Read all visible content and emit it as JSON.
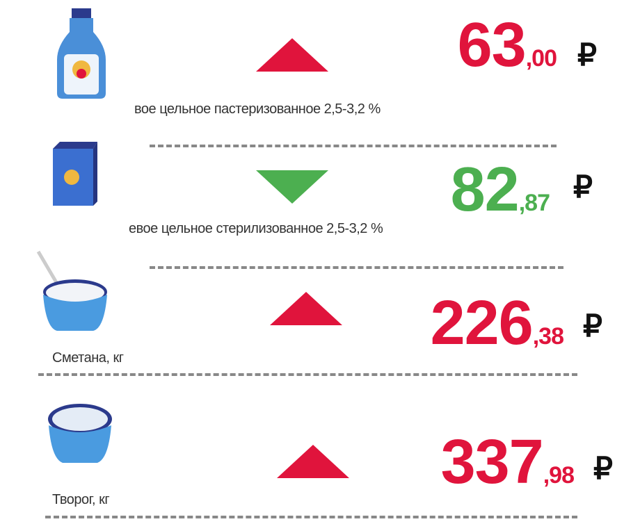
{
  "items": [
    {
      "label": "вое цельное пастеризованное 2,5-3,2 %",
      "price": "63",
      "decimals": ",00",
      "currency": "₽",
      "trend": "up"
    },
    {
      "label": "евое цельное стерилизованное 2,5-3,2 %",
      "price": "82",
      "decimals": ",87",
      "currency": "₽",
      "trend": "down"
    },
    {
      "label": "Сметана, кг",
      "price": "226",
      "decimals": ",38",
      "currency": "₽",
      "trend": "up"
    },
    {
      "label": "Творог, кг",
      "price": "337",
      "decimals": ",98",
      "currency": "₽",
      "trend": "up"
    }
  ]
}
